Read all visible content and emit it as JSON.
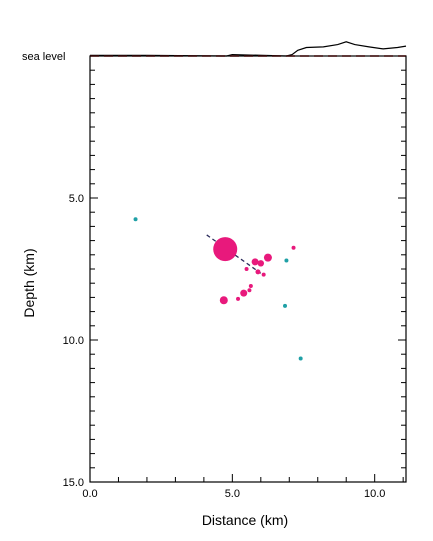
{
  "chart_data": {
    "type": "scatter",
    "xlabel": "Distance  (km)",
    "ylabel": "Depth  (km)",
    "xlim": [
      0,
      11.1
    ],
    "ylim": [
      0,
      15
    ],
    "y_inverted": true,
    "x_ticks": [
      {
        "value": 0,
        "label": "0.0"
      },
      {
        "value": 5,
        "label": "5.0"
      },
      {
        "value": 10,
        "label": "10.0"
      }
    ],
    "y_ticks": [
      {
        "value": 5,
        "label": "5.0"
      },
      {
        "value": 10,
        "label": "10.0"
      },
      {
        "value": 15,
        "label": "15.0"
      }
    ],
    "sea_level_label": "sea level",
    "colors": {
      "magenta": "#e8197c",
      "teal": "#1fa0a6",
      "sea_level": "#e02020",
      "fault": "#2a2a5a"
    },
    "series": [
      {
        "color_key": "magenta",
        "points": [
          {
            "x": 4.75,
            "y": 6.8,
            "size": 12
          },
          {
            "x": 5.8,
            "y": 7.25,
            "size": 3.5
          },
          {
            "x": 6.0,
            "y": 7.3,
            "size": 3.2
          },
          {
            "x": 6.25,
            "y": 7.1,
            "size": 4
          },
          {
            "x": 7.15,
            "y": 6.75,
            "size": 2
          },
          {
            "x": 5.5,
            "y": 7.5,
            "size": 2
          },
          {
            "x": 5.9,
            "y": 7.6,
            "size": 2.5
          },
          {
            "x": 6.1,
            "y": 7.7,
            "size": 2
          },
          {
            "x": 5.65,
            "y": 8.1,
            "size": 2
          },
          {
            "x": 5.6,
            "y": 8.25,
            "size": 2
          },
          {
            "x": 5.4,
            "y": 8.35,
            "size": 3.5
          },
          {
            "x": 4.7,
            "y": 8.6,
            "size": 4
          },
          {
            "x": 5.2,
            "y": 8.55,
            "size": 2
          }
        ]
      },
      {
        "color_key": "teal",
        "points": [
          {
            "x": 1.6,
            "y": 5.75,
            "size": 2
          },
          {
            "x": 6.9,
            "y": 7.2,
            "size": 2
          },
          {
            "x": 6.85,
            "y": 8.8,
            "size": 2
          },
          {
            "x": 7.4,
            "y": 10.65,
            "size": 2
          }
        ]
      }
    ],
    "fault_line": [
      [
        4.1,
        6.3
      ],
      [
        6.0,
        7.65
      ]
    ],
    "topography": [
      [
        0,
        -0.02
      ],
      [
        2.0,
        -0.02
      ],
      [
        4.8,
        0.0
      ],
      [
        5.0,
        -0.05
      ],
      [
        6.9,
        0.0
      ],
      [
        7.1,
        -0.05
      ],
      [
        7.3,
        -0.2
      ],
      [
        7.6,
        -0.3
      ],
      [
        8.2,
        -0.32
      ],
      [
        8.7,
        -0.4
      ],
      [
        9.0,
        -0.5
      ],
      [
        9.3,
        -0.4
      ],
      [
        9.8,
        -0.32
      ],
      [
        10.3,
        -0.25
      ],
      [
        10.8,
        -0.3
      ],
      [
        11.1,
        -0.35
      ]
    ]
  }
}
